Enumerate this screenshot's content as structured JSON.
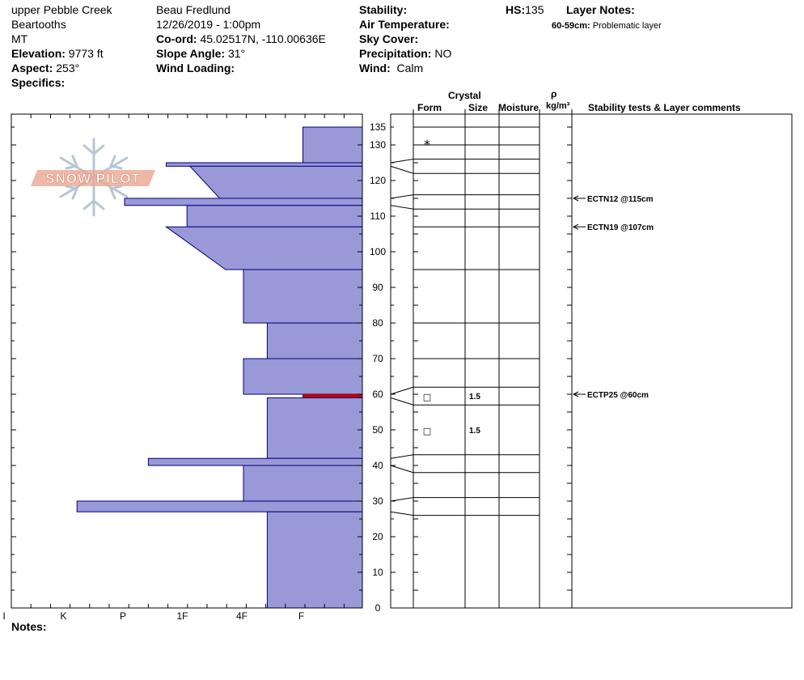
{
  "header": {
    "location": "upper Pebble Creek",
    "range": "Beartooths",
    "state": "MT",
    "elevation_label": "Elevation:",
    "elevation_value": "9773 ft",
    "aspect_label": "Aspect:",
    "aspect_value": "253°",
    "specifics_label": "Specifics:",
    "observer": "Beau  Fredlund",
    "datetime": "12/26/2019 - 1:00pm",
    "coord_label": "Co-ord:",
    "coord_value": "45.02517N, -110.00636E",
    "slope_label": "Slope Angle:",
    "slope_value": "31°",
    "wind_loading_label": "Wind Loading:",
    "stability_label": "Stability:",
    "air_temp_label": "Air Temperature:",
    "sky_label": "Sky Cover:",
    "precip_label": "Precipitation:",
    "precip_value": "NO",
    "wind_label": "Wind:",
    "wind_value": "Calm",
    "hs_label": "HS:",
    "hs_value": "135",
    "layer_notes_label": "Layer Notes:",
    "layer_note_range": "60-59cm:",
    "layer_note_text": "Problematic layer"
  },
  "columns": {
    "crystal": "Crystal",
    "form": "Form",
    "size": "Size",
    "moisture": "Moisture",
    "rho": "ρ",
    "density_unit": "kg/m³",
    "stability": "Stability tests & Layer comments"
  },
  "logo_text": "SNOW PILOT",
  "notes_label": "Notes:",
  "chart_data": {
    "type": "bar",
    "orientation": "horizontal",
    "description_axis": "hand hardness profile",
    "y_axis": {
      "min": 0,
      "max": 140,
      "ticks": [
        0,
        10,
        20,
        30,
        40,
        50,
        60,
        70,
        80,
        90,
        100,
        110,
        120,
        130,
        135
      ]
    },
    "x_axis": {
      "categories": [
        "I",
        "K",
        "P",
        "1F",
        "4F",
        "F"
      ],
      "category_positions": [
        6,
        5,
        4,
        3,
        2,
        1
      ]
    },
    "layers": [
      {
        "top": 135,
        "bottom": 125,
        "hardness_top": 1,
        "hardness_bottom": 1
      },
      {
        "top": 125,
        "bottom": 124,
        "hardness_top": 3.3,
        "hardness_bottom": 3.3
      },
      {
        "top": 124,
        "bottom": 115,
        "hardness_top": 2.9,
        "hardness_bottom": 2.4
      },
      {
        "top": 115,
        "bottom": 113,
        "hardness_top": 4,
        "hardness_bottom": 4
      },
      {
        "top": 113,
        "bottom": 107,
        "hardness_top": 2.95,
        "hardness_bottom": 2.95
      },
      {
        "top": 107,
        "bottom": 95,
        "hardness_top": 3.3,
        "hardness_bottom": 2.3
      },
      {
        "top": 95,
        "bottom": 80,
        "hardness_top": 2.0,
        "hardness_bottom": 2.0
      },
      {
        "top": 80,
        "bottom": 70,
        "hardness_top": 1.6,
        "hardness_bottom": 1.6
      },
      {
        "top": 70,
        "bottom": 60,
        "hardness_top": 2.0,
        "hardness_bottom": 2.0
      },
      {
        "top": 60,
        "bottom": 59,
        "hardness_top": 1.0,
        "hardness_bottom": 1.0,
        "highlight": true
      },
      {
        "top": 59,
        "bottom": 42,
        "hardness_top": 1.6,
        "hardness_bottom": 1.6
      },
      {
        "top": 42,
        "bottom": 40,
        "hardness_top": 3.6,
        "hardness_bottom": 3.6
      },
      {
        "top": 40,
        "bottom": 30,
        "hardness_top": 2.0,
        "hardness_bottom": 2.0
      },
      {
        "top": 30,
        "bottom": 27,
        "hardness_top": 4.8,
        "hardness_bottom": 4.8
      },
      {
        "top": 27,
        "bottom": 0,
        "hardness_top": 1.6,
        "hardness_bottom": 1.6
      }
    ],
    "layer_boundaries": [
      135,
      130,
      126,
      122,
      116,
      112,
      107,
      95,
      80,
      70,
      62,
      57,
      43,
      38,
      31,
      26
    ],
    "crystal_marks": [
      {
        "depth": 130,
        "form": "*",
        "size": ""
      },
      {
        "depth": 59.5,
        "form": "□",
        "size": "1.5"
      },
      {
        "depth": 50,
        "form": "□",
        "size": "1.5"
      }
    ],
    "stability_tests": [
      {
        "depth": 115,
        "label": "ECTN12 @115cm"
      },
      {
        "depth": 107,
        "label": "ECTN19 @107cm"
      },
      {
        "depth": 60,
        "label": "ECTP25 @60cm"
      }
    ],
    "colors": {
      "bar_fill": "#9999d8",
      "bar_stroke": "#00007a",
      "highlight": "#cc0000"
    }
  }
}
